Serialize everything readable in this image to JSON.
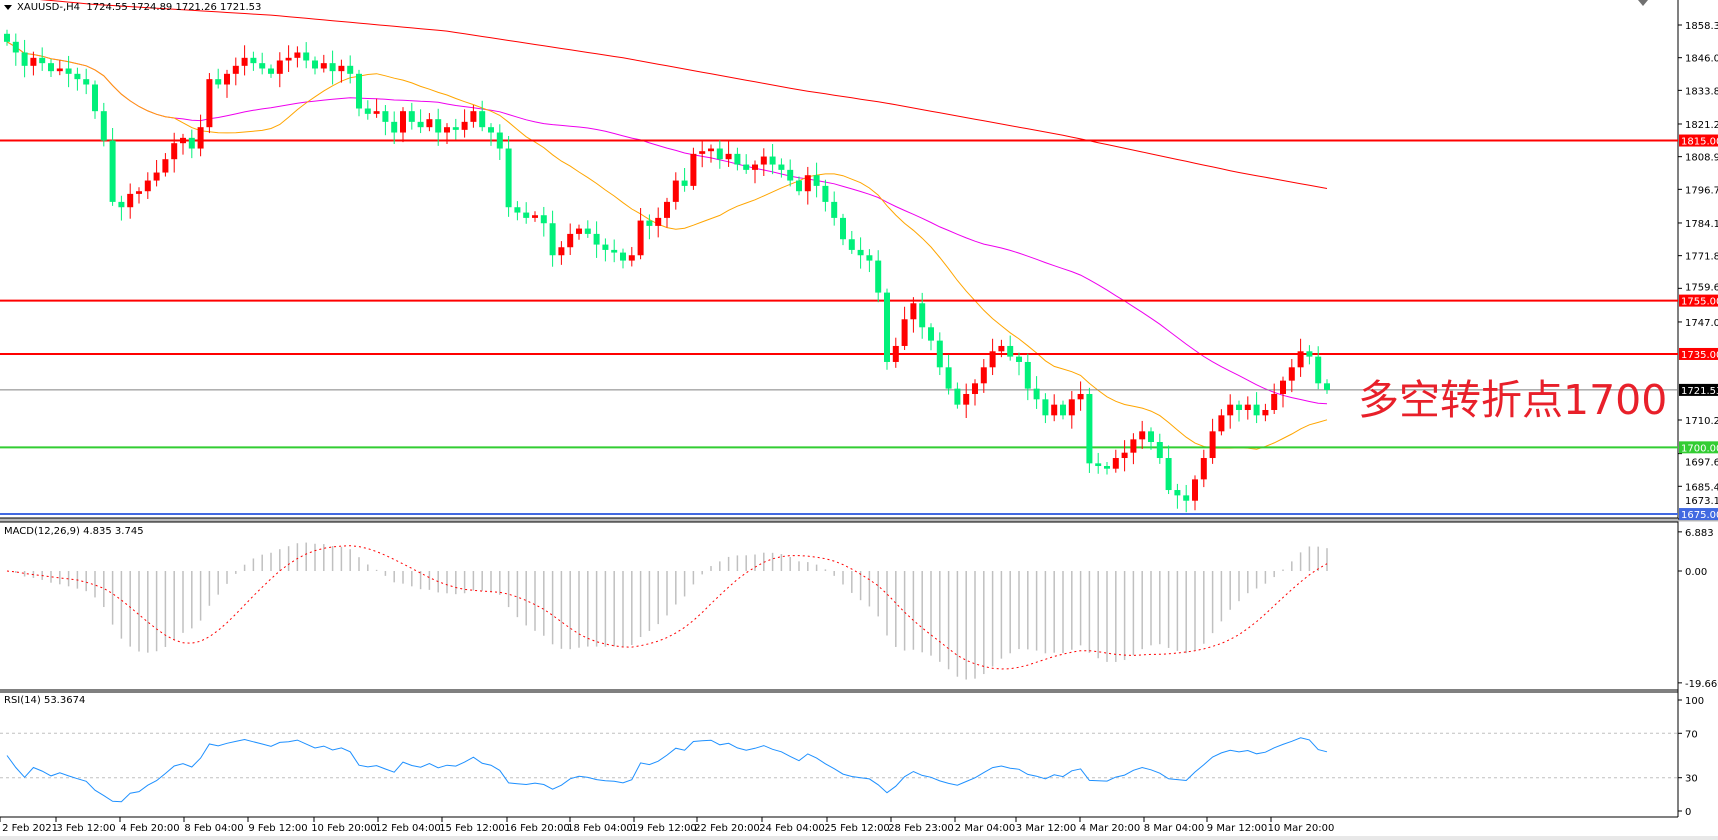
{
  "header": {
    "symbol": "XAUUSD-,H4",
    "ohlc": "1724.55 1724.89 1721.26 1721.53"
  },
  "annotation": "多空转折点1700",
  "macd": {
    "label": "MACD(12,26,9) 4.835 3.745",
    "ticks": [
      "6.883",
      "0.00",
      "-19.669"
    ]
  },
  "rsi": {
    "label": "RSI(14) 53.3674",
    "ticks": [
      "100",
      "70",
      "30",
      "0"
    ],
    "levels": [
      70,
      30
    ]
  },
  "colors": {
    "bull": "#ff0000",
    "bear": "#00f07a",
    "ma_fast": "#ffa500",
    "ma_mid": "#ee00ee",
    "ma_slow": "#ff0000",
    "rsi": "#1e90ff",
    "macd_hist": "#c0c0c0",
    "macd_signal": "#ff0000",
    "current_price": "#808080"
  },
  "chart_data": {
    "type": "candlestick",
    "symbol": "XAUUSD-",
    "timeframe": "H4",
    "ylim": [
      1675.15,
      1858.3
    ],
    "price_ticks": [
      "1858.30",
      "1846.05",
      "1833.80",
      "1821.20",
      "1808.95",
      "1796.70",
      "1784.10",
      "1771.85",
      "1759.60",
      "1747.00",
      "1710.25",
      "1697.65",
      "1685.40",
      "1673.15"
    ],
    "time_labels": [
      "2 Feb 2021",
      "3 Feb 12:00",
      "4 Feb 20:00",
      "8 Feb 04:00",
      "9 Feb 12:00",
      "10 Feb 20:00",
      "12 Feb 04:00",
      "15 Feb 12:00",
      "16 Feb 20:00",
      "18 Feb 04:00",
      "19 Feb 12:00",
      "22 Feb 20:00",
      "24 Feb 04:00",
      "25 Feb 12:00",
      "28 Feb 23:00",
      "2 Mar 04:00",
      "3 Mar 12:00",
      "4 Mar 20:00",
      "8 Mar 04:00",
      "9 Mar 12:00",
      "10 Mar 20:00"
    ],
    "horizontal_lines": [
      {
        "price": 1815.0,
        "label": "1815.00",
        "color": "#ff0000"
      },
      {
        "price": 1755.0,
        "label": "1755.00",
        "color": "#ff0000"
      },
      {
        "price": 1735.0,
        "label": "1735.00",
        "color": "#ff0000"
      },
      {
        "price": 1700.0,
        "label": "1700.00",
        "color": "#32cd32"
      },
      {
        "price": 1675.0,
        "label": "1675.00",
        "color": "#4169e1"
      }
    ],
    "current_price": {
      "price": 1721.53,
      "label": "1721.53"
    },
    "closes": [
      1852,
      1848,
      1843,
      1846,
      1844,
      1841,
      1842,
      1840,
      1838,
      1836,
      1826,
      1815,
      1792,
      1790,
      1795,
      1796,
      1800,
      1803,
      1808,
      1814,
      1816,
      1812,
      1820,
      1838,
      1836,
      1840,
      1843,
      1846,
      1844,
      1842,
      1840,
      1845,
      1846,
      1848,
      1845,
      1842,
      1844,
      1841,
      1843,
      1840,
      1827,
      1825,
      1826,
      1822,
      1818,
      1826,
      1822,
      1820,
      1823,
      1818,
      1820,
      1819,
      1822,
      1826,
      1820,
      1818,
      1812,
      1790,
      1788,
      1786,
      1787,
      1784,
      1772,
      1775,
      1780,
      1782,
      1780,
      1776,
      1774,
      1773,
      1770,
      1772,
      1785,
      1783,
      1786,
      1792,
      1800,
      1798,
      1810,
      1811,
      1812,
      1808,
      1810,
      1806,
      1804,
      1806,
      1809,
      1806,
      1804,
      1800,
      1796,
      1802,
      1798,
      1792,
      1786,
      1778,
      1774,
      1772,
      1770,
      1758,
      1732,
      1738,
      1748,
      1754,
      1745,
      1740,
      1730,
      1722,
      1716,
      1720,
      1724,
      1730,
      1736,
      1738,
      1734,
      1732,
      1722,
      1718,
      1712,
      1716,
      1712,
      1718,
      1720,
      1694,
      1693,
      1692,
      1696,
      1698,
      1703,
      1706,
      1702,
      1696,
      1684,
      1682,
      1680,
      1688,
      1696,
      1706,
      1712,
      1716,
      1714,
      1716,
      1712,
      1714,
      1720,
      1725,
      1730,
      1736,
      1734,
      1724,
      1721.53
    ],
    "first_open": 1855,
    "ma_slow_every_10_bars": [
      1869,
      1866,
      1864,
      1862,
      1859,
      1856,
      1851,
      1846,
      1840,
      1834,
      1829,
      1823,
      1817,
      1810,
      1803,
      1797
    ],
    "indicators": [
      "MA fast",
      "MA mid",
      "MA slow",
      "MACD(12,26,9)",
      "RSI(14)"
    ]
  }
}
